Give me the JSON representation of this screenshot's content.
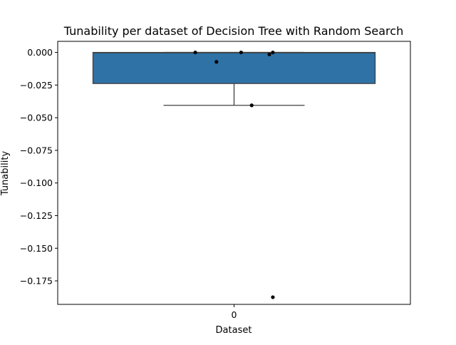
{
  "chart_data": {
    "type": "box",
    "title": "Tunability per dataset of Decision Tree with Random Search",
    "xlabel": "Dataset",
    "ylabel": "Tunability",
    "categories": [
      "0"
    ],
    "ylim": [
      -0.193,
      0.0085
    ],
    "y_ticks": [
      0.0,
      -0.025,
      -0.05,
      -0.075,
      -0.1,
      -0.125,
      -0.15,
      -0.175
    ],
    "y_tick_labels": [
      "0.000",
      "−0.025",
      "−0.050",
      "−0.075",
      "−0.100",
      "−0.125",
      "−0.150",
      "−0.175"
    ],
    "grid": false,
    "box": {
      "q1": -0.0238,
      "median": -0.0003,
      "q3": 0.0,
      "whisker_low": -0.0405,
      "whisker_high": 0.0
    },
    "points": [
      {
        "x_offset": -0.11,
        "y": 0.0
      },
      {
        "x_offset": -0.05,
        "y": -0.0072
      },
      {
        "x_offset": 0.02,
        "y": 0.0
      },
      {
        "x_offset": 0.05,
        "y": -0.0405
      },
      {
        "x_offset": 0.1,
        "y": -0.0015
      },
      {
        "x_offset": 0.11,
        "y": 0.0
      },
      {
        "x_offset": 0.11,
        "y": -0.1875
      }
    ],
    "colors": {
      "box_fill": "#2e72a6",
      "box_edge": "#3f3f3f",
      "points": "#000000"
    }
  }
}
